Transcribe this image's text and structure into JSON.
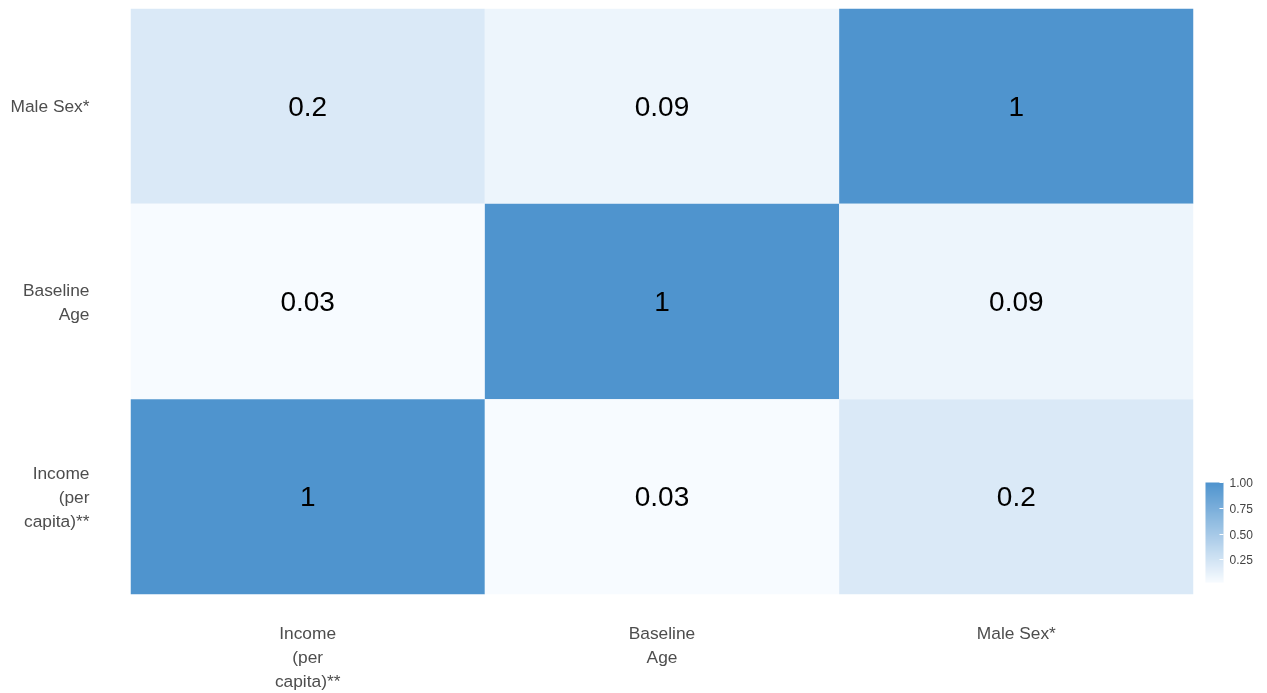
{
  "chart_data": {
    "type": "heatmap",
    "categories": [
      "Income (per capita)**",
      "Baseline Age",
      "Male Sex*"
    ],
    "y_categories": [
      "Male Sex*",
      "Baseline Age",
      "Income (per capita)**"
    ],
    "cells": [
      [
        0.2,
        0.09,
        1
      ],
      [
        0.03,
        1,
        0.09
      ],
      [
        1,
        0.03,
        0.2
      ]
    ],
    "colors": [
      "#f7fbff",
      "#4f94ce"
    ],
    "clim": [
      0.03,
      1
    ],
    "cticks": [
      {
        "value": 0.25,
        "label": "0.25"
      },
      {
        "value": 0.5,
        "label": "0.50"
      },
      {
        "value": 0.75,
        "label": "0.75"
      },
      {
        "value": 1,
        "label": "1.00"
      }
    ],
    "data_labels": true
  }
}
